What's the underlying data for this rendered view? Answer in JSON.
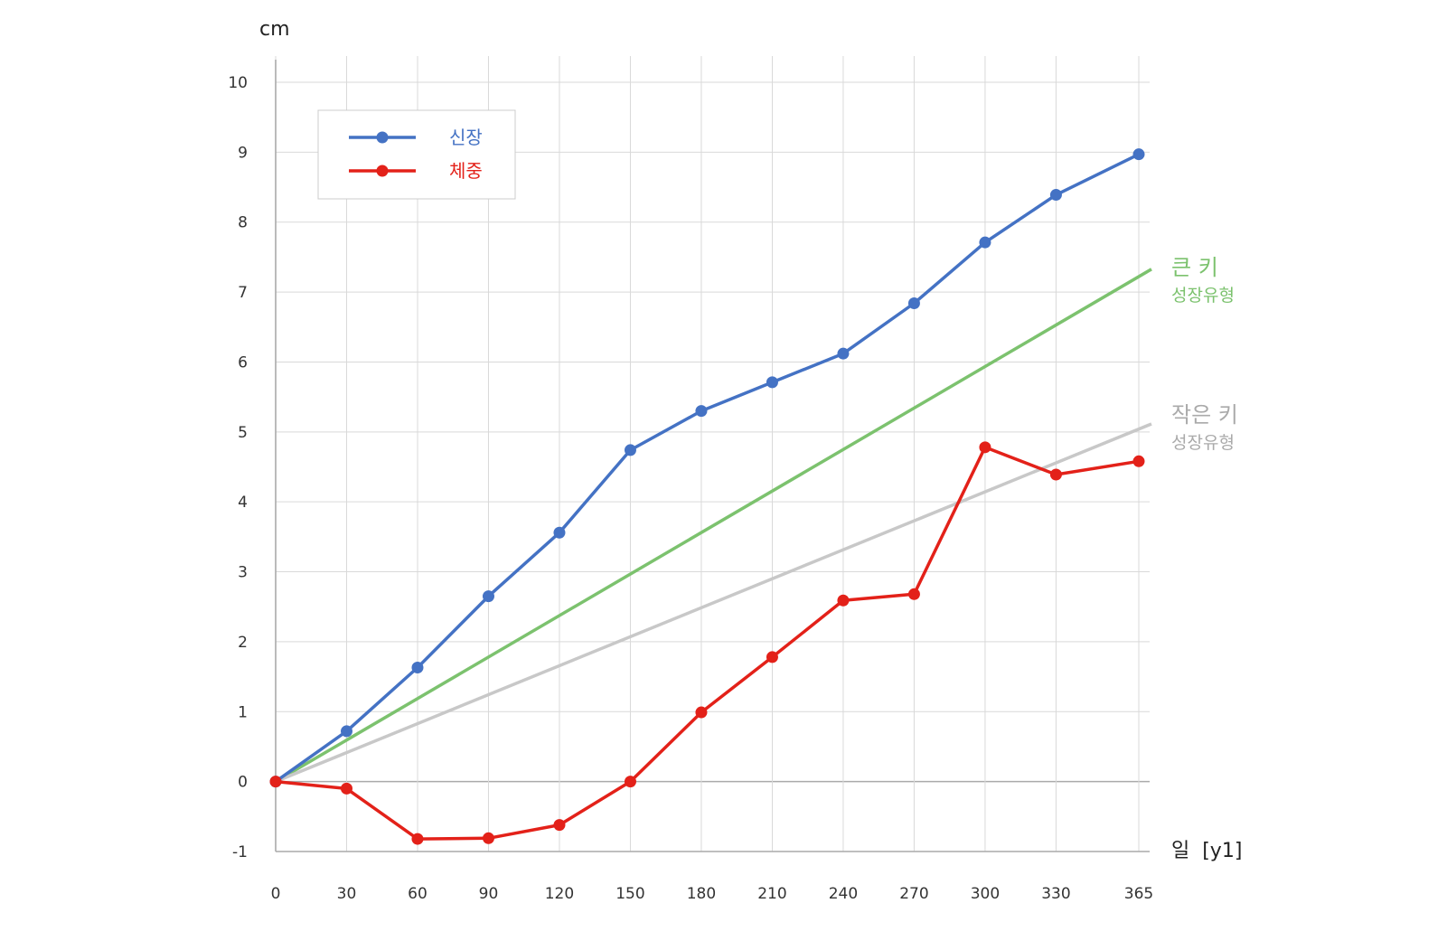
{
  "chart_data": {
    "type": "line",
    "ylabel": "cm",
    "xlabel": "일  [y1]",
    "xlim": [
      0,
      365
    ],
    "ylim": [
      -1,
      10
    ],
    "x": [
      0,
      30,
      60,
      90,
      120,
      150,
      180,
      210,
      240,
      270,
      300,
      330,
      365
    ],
    "y_ticks": [
      -1,
      0,
      1,
      2,
      3,
      4,
      5,
      6,
      7,
      8,
      9,
      10
    ],
    "grid": true,
    "legend_position": "top-left",
    "series": [
      {
        "name": "신장",
        "color": "#4472c4",
        "values": [
          0,
          0.72,
          1.63,
          2.65,
          3.56,
          4.74,
          5.3,
          5.71,
          6.12,
          6.84,
          7.71,
          8.39,
          8.97
        ]
      },
      {
        "name": "체중",
        "color": "#e32119",
        "values": [
          0,
          -0.1,
          -0.82,
          -0.81,
          -0.62,
          0,
          0.99,
          1.78,
          2.59,
          2.68,
          4.78,
          4.39,
          4.58
        ]
      }
    ],
    "reference_lines": [
      {
        "label": "큰 키",
        "sublabel": "성장유형",
        "color": "#7cc26e",
        "x": [
          0,
          365
        ],
        "y": [
          0,
          7.12
        ]
      },
      {
        "label": "작은 키",
        "sublabel": "성장유형",
        "color": "#c8c8c8",
        "label_color": "#aaaaaa",
        "x": [
          0,
          365
        ],
        "y": [
          0,
          5.05
        ]
      }
    ]
  }
}
